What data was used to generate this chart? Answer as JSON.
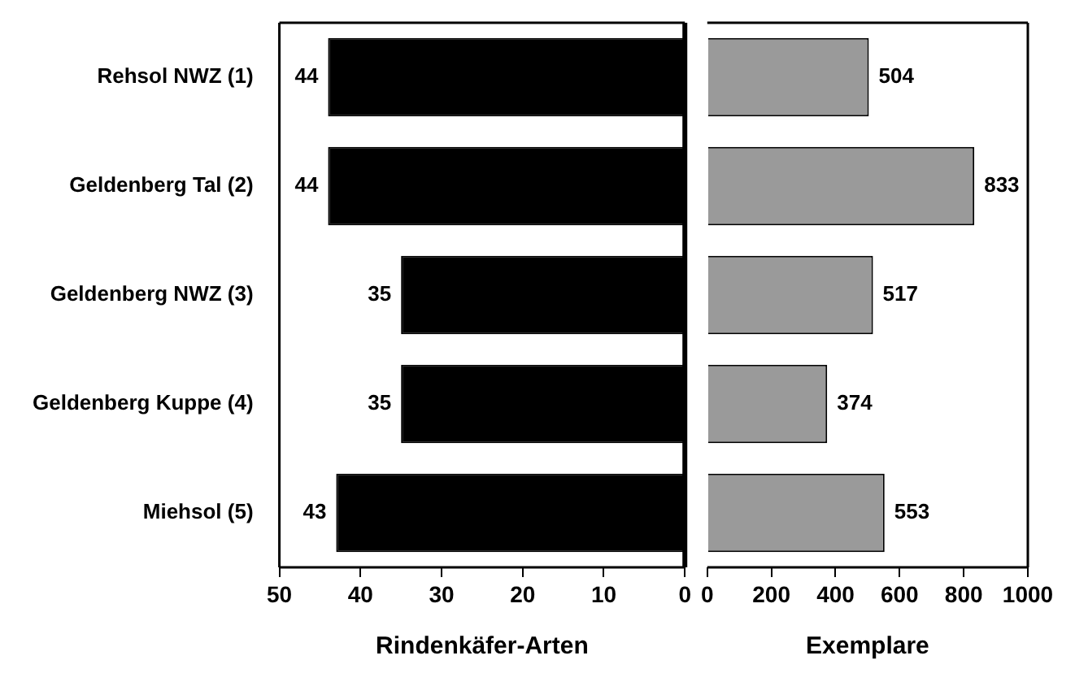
{
  "chart_data": [
    {
      "type": "bar",
      "orientation": "horizontal",
      "categories": [
        "Rehsol NWZ (1)",
        "Geldenberg Tal (2)",
        "Geldenberg NWZ (3)",
        "Geldenberg Kuppe (4)",
        "Miehsol (5)"
      ],
      "values": [
        44,
        44,
        35,
        35,
        43
      ],
      "color": "#000000",
      "xlabel": "Rindenkäfer-Arten",
      "xlim": [
        50,
        0
      ],
      "xticks": [
        50,
        40,
        30,
        20,
        10,
        0
      ],
      "grid": false,
      "legend": false,
      "data_labels": true
    },
    {
      "type": "bar",
      "orientation": "horizontal",
      "categories": [
        null,
        null,
        null,
        null,
        null
      ],
      "values": [
        504,
        833,
        517,
        374,
        553
      ],
      "color": "#9a9a9a",
      "xlabel": "Exemplare",
      "xlim": [
        0,
        1000
      ],
      "xticks": [
        0,
        200,
        400,
        600,
        800,
        1000
      ],
      "grid": false,
      "legend": false,
      "data_labels": true,
      "tick_labels": "x"
    }
  ]
}
